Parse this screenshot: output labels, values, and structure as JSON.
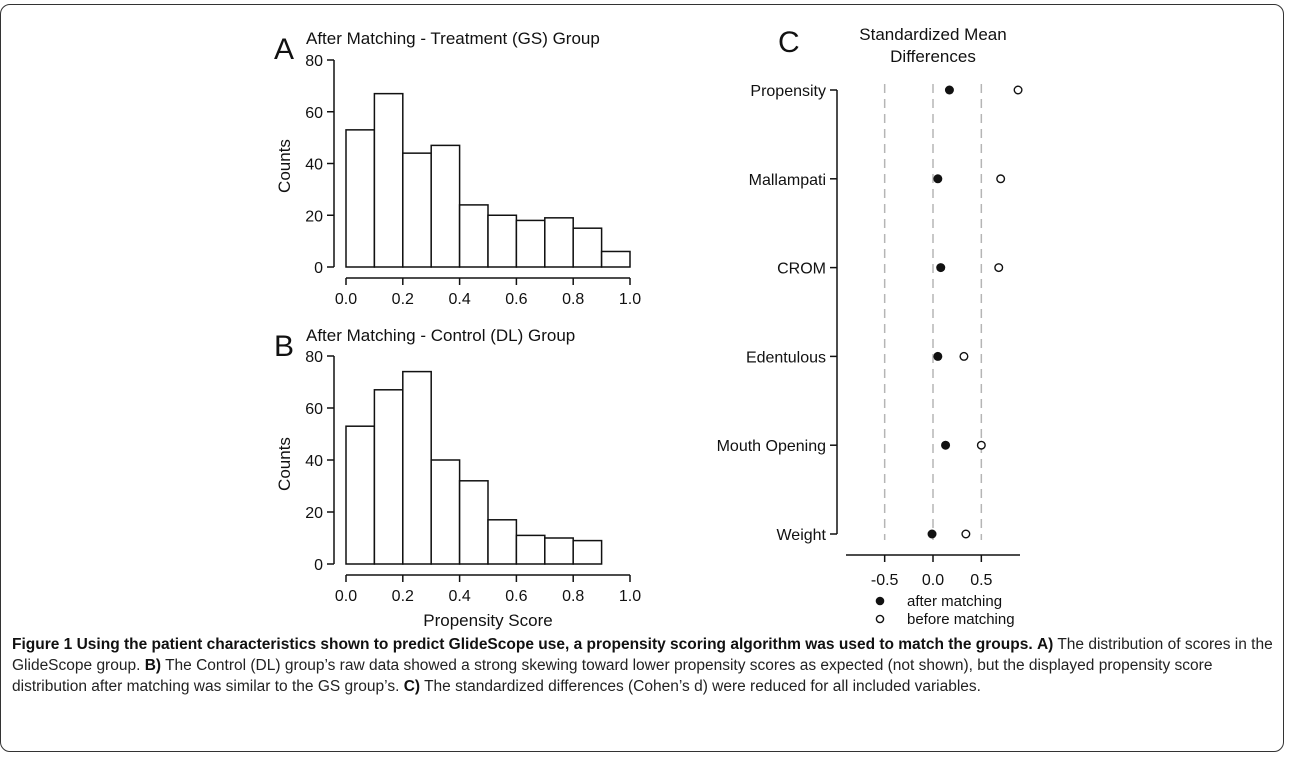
{
  "chart_data": [
    {
      "type": "bar",
      "letter": "A",
      "title": "After Matching - Treatment (GS) Group",
      "ylabel": "Counts",
      "xlabel": "",
      "bin_edges": [
        0.0,
        0.1,
        0.2,
        0.3,
        0.4,
        0.5,
        0.6,
        0.7,
        0.8,
        0.9,
        1.0
      ],
      "values": [
        53,
        67,
        44,
        47,
        24,
        20,
        18,
        19,
        15,
        6
      ],
      "ylim": [
        0,
        80
      ],
      "xlim": [
        0,
        1
      ],
      "yticks": [
        0,
        20,
        40,
        60,
        80
      ],
      "xticks": [
        "0.0",
        "0.2",
        "0.4",
        "0.6",
        "0.8",
        "1.0"
      ]
    },
    {
      "type": "bar",
      "letter": "B",
      "title": "After Matching - Control (DL) Group",
      "ylabel": "Counts",
      "xlabel": "Propensity Score",
      "bin_edges": [
        0.0,
        0.1,
        0.2,
        0.3,
        0.4,
        0.5,
        0.6,
        0.7,
        0.8,
        0.9
      ],
      "values": [
        53,
        67,
        74,
        40,
        32,
        17,
        11,
        10,
        9
      ],
      "ylim": [
        0,
        80
      ],
      "xlim": [
        0,
        1
      ],
      "yticks": [
        0,
        20,
        40,
        60,
        80
      ],
      "xticks": [
        "0.0",
        "0.2",
        "0.4",
        "0.6",
        "0.8",
        "1.0"
      ]
    },
    {
      "type": "scatter",
      "letter": "C",
      "title_lines": [
        "Standardized Mean",
        "Differences"
      ],
      "categories": [
        "Propensity",
        "Mallampati",
        "CROM",
        "Edentulous",
        "Mouth Opening",
        "Weight"
      ],
      "series": [
        {
          "name": "after matching",
          "marker": "filled",
          "values": [
            0.17,
            0.05,
            0.08,
            0.05,
            0.13,
            -0.01
          ]
        },
        {
          "name": "before matching",
          "marker": "open",
          "values": [
            0.88,
            0.7,
            0.68,
            0.32,
            0.5,
            0.34
          ]
        }
      ],
      "xticks": [
        "-0.5",
        "0.0",
        "0.5"
      ],
      "xtick_values": [
        -0.5,
        0.0,
        0.5
      ],
      "reference_lines": [
        -0.5,
        0.0,
        0.5
      ],
      "xlim": [
        -0.9,
        0.9
      ],
      "legend_position": "bottom"
    }
  ],
  "caption": {
    "figure_label": "Figure 1",
    "title": " Using the patient characteristics shown to predict GlideScope use, a propensity scoring algorithm was used to match the groups.",
    "a_label": "A)",
    "a_text": " The distribution of scores in the GlideScope group. ",
    "b_label": "B)",
    "b_text": " The Control (DL) group’s raw data showed a strong skewing toward lower propensity scores as expected (not shown), but the displayed propensity score distribution after matching was similar to the GS group’s. ",
    "c_label": "C)",
    "c_text": " The standardized differences (Cohen’s d) were reduced for all included variables."
  }
}
